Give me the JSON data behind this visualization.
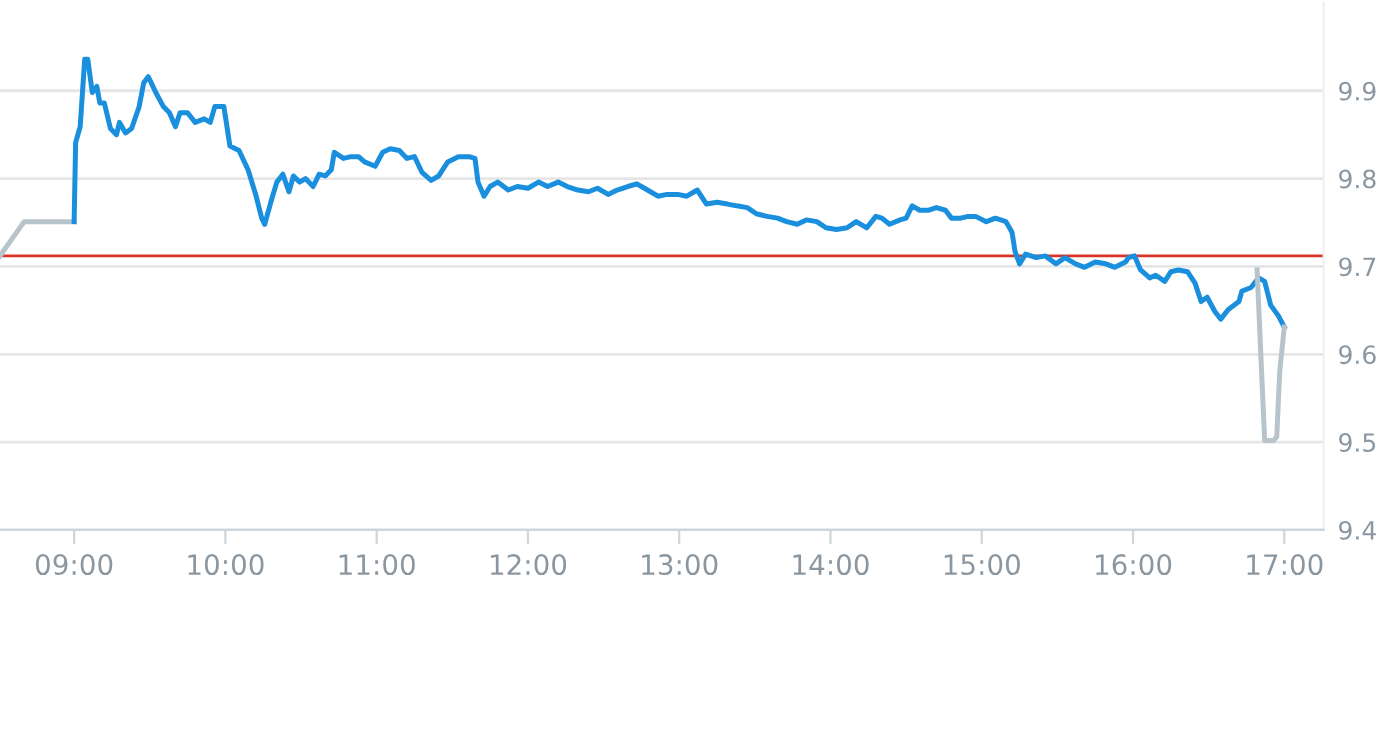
{
  "chart_data": {
    "type": "line",
    "series": [
      {
        "color": "#b8c4cc",
        "x": [
          8.51,
          8.67,
          9.0
        ],
        "values": [
          9.712,
          9.751,
          9.751
        ]
      },
      {
        "color": "#1a8fdd",
        "x": [
          9.0,
          9.01,
          9.04,
          9.07,
          9.09,
          9.12,
          9.15,
          9.17,
          9.2,
          9.24,
          9.28,
          9.3,
          9.34,
          9.38,
          9.43,
          9.46,
          9.49,
          9.51,
          9.54,
          9.59,
          9.63,
          9.67,
          9.7,
          9.75,
          9.8,
          9.86,
          9.9,
          9.93,
          9.99,
          10.03,
          10.09,
          10.15,
          10.2,
          10.24,
          10.26,
          10.3,
          10.34,
          10.38,
          10.42,
          10.45,
          10.49,
          10.53,
          10.58,
          10.62,
          10.66,
          10.7,
          10.72,
          10.78,
          10.83,
          10.88,
          10.92,
          10.99,
          11.04,
          11.09,
          11.15,
          11.2,
          11.25,
          11.3,
          11.36,
          11.41,
          11.47,
          11.54,
          11.61,
          11.65,
          11.67,
          11.71,
          11.75,
          11.8,
          11.87,
          11.93,
          12.0,
          12.07,
          12.13,
          12.2,
          12.26,
          12.33,
          12.4,
          12.46,
          12.53,
          12.59,
          12.66,
          12.72,
          12.79,
          12.86,
          12.92,
          12.99,
          13.05,
          13.12,
          13.18,
          13.25,
          13.32,
          13.38,
          13.45,
          13.51,
          13.58,
          13.65,
          13.71,
          13.78,
          13.84,
          13.91,
          13.97,
          14.04,
          14.11,
          14.17,
          14.24,
          14.3,
          14.34,
          14.39,
          14.46,
          14.5,
          14.54,
          14.59,
          14.65,
          14.7,
          14.76,
          14.8,
          14.86,
          14.91,
          14.96,
          15.03,
          15.09,
          15.16,
          15.2,
          15.22,
          15.25,
          15.29,
          15.36,
          15.42,
          15.49,
          15.55,
          15.62,
          15.68,
          15.75,
          15.82,
          15.88,
          15.95,
          15.97,
          16.01,
          16.05,
          16.11,
          16.15,
          16.21,
          16.25,
          16.3,
          16.36,
          16.41,
          16.45,
          16.49,
          16.54,
          16.58,
          16.63,
          16.7,
          16.72,
          16.78,
          16.83,
          16.87,
          16.91,
          16.96,
          17.0
        ],
        "values": [
          9.751,
          9.841,
          9.859,
          9.936,
          9.936,
          9.898,
          9.905,
          9.886,
          9.886,
          9.857,
          9.85,
          9.864,
          9.852,
          9.857,
          9.882,
          9.909,
          9.916,
          9.909,
          9.898,
          9.882,
          9.875,
          9.859,
          9.875,
          9.875,
          9.864,
          9.868,
          9.864,
          9.882,
          9.882,
          9.837,
          9.832,
          9.81,
          9.782,
          9.755,
          9.748,
          9.773,
          9.796,
          9.805,
          9.785,
          9.803,
          9.796,
          9.8,
          9.791,
          9.805,
          9.803,
          9.81,
          9.83,
          9.823,
          9.825,
          9.825,
          9.819,
          9.814,
          9.83,
          9.834,
          9.832,
          9.823,
          9.825,
          9.807,
          9.798,
          9.803,
          9.819,
          9.825,
          9.825,
          9.823,
          9.796,
          9.78,
          9.791,
          9.796,
          9.787,
          9.791,
          9.789,
          9.796,
          9.791,
          9.796,
          9.791,
          9.787,
          9.785,
          9.789,
          9.782,
          9.787,
          9.791,
          9.794,
          9.787,
          9.78,
          9.782,
          9.782,
          9.78,
          9.787,
          9.771,
          9.773,
          9.771,
          9.769,
          9.767,
          9.76,
          9.757,
          9.755,
          9.751,
          9.748,
          9.753,
          9.751,
          9.744,
          9.742,
          9.744,
          9.751,
          9.744,
          9.757,
          9.755,
          9.748,
          9.753,
          9.755,
          9.769,
          9.764,
          9.764,
          9.767,
          9.764,
          9.755,
          9.755,
          9.757,
          9.757,
          9.751,
          9.755,
          9.751,
          9.739,
          9.717,
          9.703,
          9.714,
          9.71,
          9.712,
          9.703,
          9.71,
          9.703,
          9.699,
          9.705,
          9.703,
          9.699,
          9.705,
          9.71,
          9.712,
          9.696,
          9.687,
          9.69,
          9.683,
          9.694,
          9.696,
          9.694,
          9.681,
          9.66,
          9.665,
          9.649,
          9.64,
          9.651,
          9.66,
          9.672,
          9.676,
          9.687,
          9.683,
          9.656,
          9.644,
          9.631
        ]
      },
      {
        "color": "#b8c4cc",
        "x": [
          16.82,
          16.87,
          16.93,
          16.95,
          16.97,
          17.0
        ],
        "values": [
          9.696,
          9.502,
          9.502,
          9.506,
          9.581,
          9.631
        ]
      }
    ],
    "xlim": [
      8.51,
      17.26
    ],
    "xticks": [
      {
        "value": 9,
        "label": "09:00"
      },
      {
        "value": 10,
        "label": "10:00"
      },
      {
        "value": 11,
        "label": "11:00"
      },
      {
        "value": 12,
        "label": "12:00"
      },
      {
        "value": 13,
        "label": "13:00"
      },
      {
        "value": 14,
        "label": "14:00"
      },
      {
        "value": 15,
        "label": "15:00"
      },
      {
        "value": 16,
        "label": "16:00"
      },
      {
        "value": 17,
        "label": "17:00"
      }
    ],
    "ylim": [
      9.4,
      10.0
    ],
    "yticks": [
      9.4,
      9.5,
      9.6,
      9.7,
      9.8,
      9.9
    ],
    "ref_lines": [
      {
        "axis": "y",
        "value": 9.712,
        "color": "#d9342b"
      }
    ],
    "grid": "y",
    "legend": false,
    "marker": "none",
    "line_style": "solid"
  }
}
